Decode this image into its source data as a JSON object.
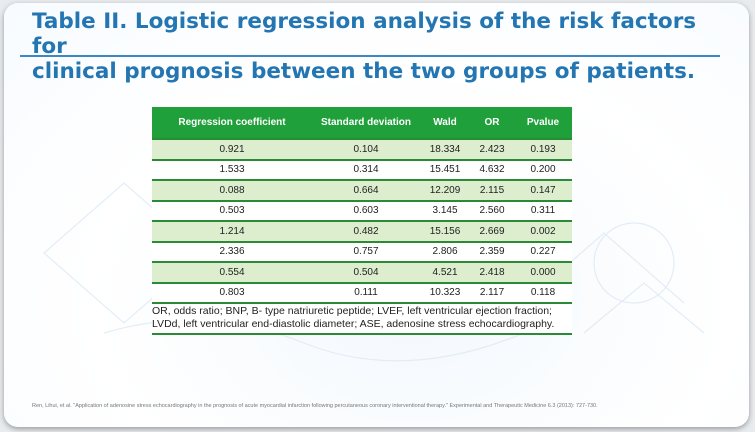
{
  "slide": {
    "title_line1": "Table II. Logistic regression analysis of the risk factors for",
    "title_line2": "clinical prognosis between the two groups of patients."
  },
  "table": {
    "headers": [
      "Regression coefficient",
      "Standard deviation",
      "Wald",
      "OR",
      "Pvalue"
    ],
    "rows": [
      [
        "0.921",
        "0.104",
        "18.334",
        "2.423",
        "0.193"
      ],
      [
        "1.533",
        "0.314",
        "15.451",
        "4.632",
        "0.200"
      ],
      [
        "0.088",
        "0.664",
        "12.209",
        "2.115",
        "0.147"
      ],
      [
        "0.503",
        "0.603",
        "3.145",
        "2.560",
        "0.311"
      ],
      [
        "1.214",
        "0.482",
        "15.156",
        "2.669",
        "0.002"
      ],
      [
        "2.336",
        "0.757",
        "2.806",
        "2.359",
        "0.227"
      ],
      [
        "0.554",
        "0.504",
        "4.521",
        "2.418",
        "0.000"
      ],
      [
        "0.803",
        "0.111",
        "10.323",
        "2.117",
        "0.118"
      ]
    ],
    "footnote": "OR, odds ratio; BNP, B‑ type natriuretic peptide; LVEF, left ventricular ejection fraction; LVDd, left ventricular end-diastolic diameter; ASE, adenosine stress echocardiography."
  },
  "citation": "Ren, Lihui, et al. \"Application of adenosine stress echocardiography in the prognosis of acute myocardial infarction following percutaneous coronary interventional therapy.\" Experimental and Therapeutic Medicine 6.3 (2013): 727-730.",
  "colors": {
    "title": "#2476b2",
    "header_bg": "#1fa03a",
    "row_stripe": "#ddeecf",
    "row_border": "#2a8a36"
  }
}
